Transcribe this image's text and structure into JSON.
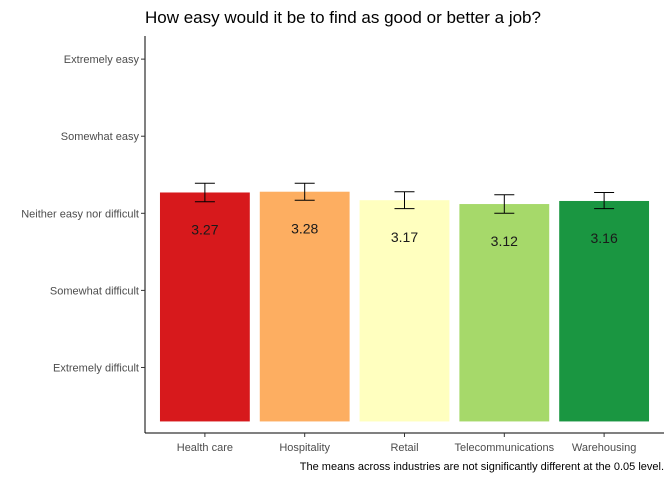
{
  "chart_data": {
    "type": "bar",
    "title": "How easy would it be to find as good or better a job?",
    "caption": "The means across industries are not significantly different at the 0.05 level.",
    "xlabel": "",
    "ylabel": "",
    "ylim": [
      0.15,
      5.3
    ],
    "y_ticks": [
      {
        "value": 1,
        "label": "Extremely difficult"
      },
      {
        "value": 2,
        "label": "Somewhat difficult"
      },
      {
        "value": 3,
        "label": "Neither easy nor difficult"
      },
      {
        "value": 4,
        "label": "Somewhat easy"
      },
      {
        "value": 5,
        "label": "Extremely easy"
      }
    ],
    "categories": [
      "Health care",
      "Hospitality",
      "Retail",
      "Telecommunications",
      "Warehousing"
    ],
    "values": [
      3.27,
      3.28,
      3.17,
      3.12,
      3.16
    ],
    "value_labels": [
      "3.27",
      "3.28",
      "3.17",
      "3.12",
      "3.16"
    ],
    "error_low": [
      3.15,
      3.17,
      3.06,
      3.0,
      3.06
    ],
    "error_high": [
      3.39,
      3.39,
      3.28,
      3.24,
      3.27
    ],
    "colors": [
      "#d7191c",
      "#fdae61",
      "#ffffbf",
      "#a6d96a",
      "#1a9641"
    ],
    "grid": false,
    "legend": "none"
  }
}
